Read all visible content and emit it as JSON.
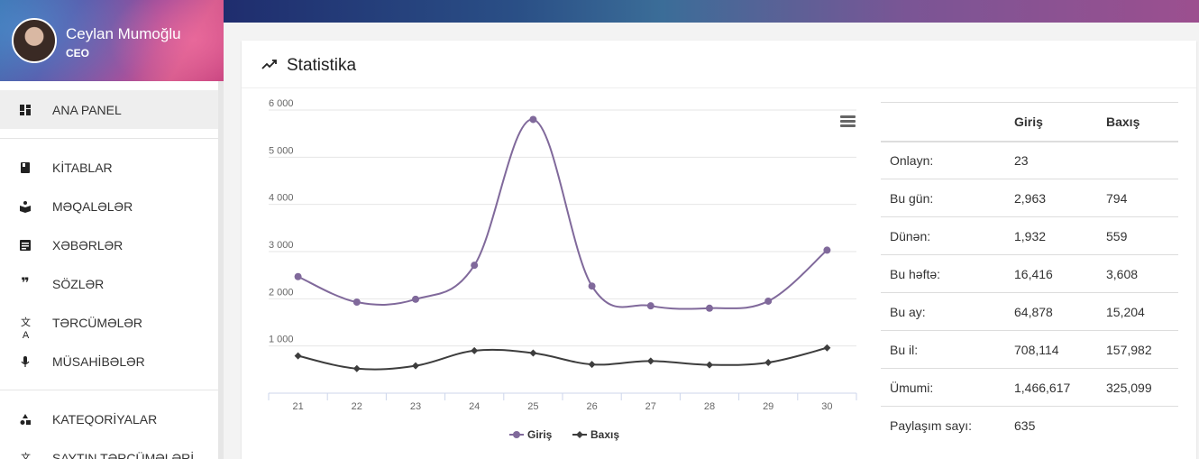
{
  "user": {
    "name": "Ceylan Mumoğlu",
    "role": "CEO"
  },
  "sidebar": {
    "items": [
      {
        "label": "ANA PANEL",
        "icon": "dashboard-icon",
        "active": true
      },
      {
        "label": "KİTABLAR",
        "icon": "book-icon"
      },
      {
        "label": "MƏQALƏLƏR",
        "icon": "open-book-icon"
      },
      {
        "label": "XƏBƏRLƏR",
        "icon": "article-icon"
      },
      {
        "label": "SÖZLƏR",
        "icon": "quote-icon"
      },
      {
        "label": "TƏRCÜMƏLƏR",
        "icon": "translate-icon"
      },
      {
        "label": "MÜSAHİBƏLƏR",
        "icon": "microphone-icon"
      },
      {
        "label": "KATEQORİYALAR",
        "icon": "category-icon"
      },
      {
        "label": "SAYTIN TƏRCÜMƏLƏRİ",
        "icon": "translate-icon"
      }
    ]
  },
  "card": {
    "title": "Statistika"
  },
  "stats_table": {
    "headers": [
      "",
      "Giriş",
      "Baxış"
    ],
    "rows": [
      [
        "Onlayn:",
        "23",
        ""
      ],
      [
        "Bu gün:",
        "2,963",
        "794"
      ],
      [
        "Dünən:",
        "1,932",
        "559"
      ],
      [
        "Bu həftə:",
        "16,416",
        "3,608"
      ],
      [
        "Bu ay:",
        "64,878",
        "15,204"
      ],
      [
        "Bu il:",
        "708,114",
        "157,982"
      ],
      [
        "Ümumi:",
        "1,466,617",
        "325,099"
      ],
      [
        "Paylaşım sayı:",
        "635",
        ""
      ]
    ]
  },
  "chart_data": {
    "type": "line",
    "x": [
      "21",
      "22",
      "23",
      "24",
      "25",
      "26",
      "27",
      "28",
      "29",
      "30"
    ],
    "ylim": [
      0,
      6000
    ],
    "yticks": [
      "1 000",
      "2 000",
      "3 000",
      "4 000",
      "5 000",
      "6 000"
    ],
    "grid": true,
    "legend": "bottom",
    "series": [
      {
        "name": "Giriş",
        "color": "#80699B",
        "marker": "circle",
        "values": [
          2470,
          1930,
          1990,
          2710,
          5800,
          2270,
          1850,
          1800,
          1950,
          3030
        ]
      },
      {
        "name": "Baxış",
        "color": "#3d3d3d",
        "marker": "diamond",
        "values": [
          790,
          520,
          580,
          900,
          850,
          610,
          680,
          600,
          650,
          960
        ]
      }
    ]
  }
}
